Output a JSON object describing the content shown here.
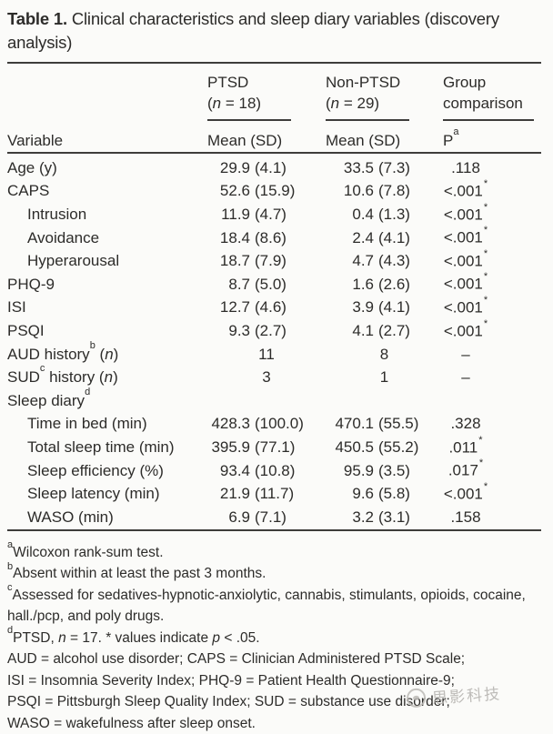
{
  "page": {
    "background_color": "#fbfbf9",
    "text_color": "#2d2c2a",
    "rule_color": "#3e3d3b",
    "watermark_color": "#b3b1ad"
  },
  "title": {
    "label": "Table 1.",
    "text": " Clinical characteristics and sleep diary variables (discovery analysis)"
  },
  "header": {
    "variable_label": "Variable",
    "ptsd": {
      "name": "PTSD",
      "n_pre": "(",
      "n_it": "n",
      "n_post": " = 18)",
      "stat": "Mean (SD)"
    },
    "nonptsd": {
      "name": "Non-PTSD",
      "n_pre": "(",
      "n_it": "n",
      "n_post": " = 29)",
      "stat": "Mean (SD)"
    },
    "group": {
      "line1": "Group",
      "line2": "comparison",
      "stat": "P",
      "stat_sup": "a"
    }
  },
  "table": {
    "rows": [
      {
        "label": "Age (y)",
        "label_sup": "",
        "tail_pre": "",
        "tail_it": "",
        "tail_post": "",
        "indent": false,
        "ptsd_mean": "29.9",
        "ptsd_sd": "(4.1)",
        "non_mean": "33.5",
        "non_sd": "(7.3)",
        "p": ".118",
        "p_star": ""
      },
      {
        "label": "CAPS",
        "label_sup": "",
        "tail_pre": "",
        "tail_it": "",
        "tail_post": "",
        "indent": false,
        "ptsd_mean": "52.6",
        "ptsd_sd": "(15.9)",
        "non_mean": "10.6",
        "non_sd": "(7.8)",
        "p": "<.001",
        "p_star": "*"
      },
      {
        "label": "Intrusion",
        "label_sup": "",
        "tail_pre": "",
        "tail_it": "",
        "tail_post": "",
        "indent": true,
        "ptsd_mean": "11.9",
        "ptsd_sd": "(4.7)",
        "non_mean": "0.4",
        "non_sd": "(1.3)",
        "p": "<.001",
        "p_star": "*"
      },
      {
        "label": "Avoidance",
        "label_sup": "",
        "tail_pre": "",
        "tail_it": "",
        "tail_post": "",
        "indent": true,
        "ptsd_mean": "18.4",
        "ptsd_sd": "(8.6)",
        "non_mean": "2.4",
        "non_sd": "(4.1)",
        "p": "<.001",
        "p_star": "*"
      },
      {
        "label": "Hyperarousal",
        "label_sup": "",
        "tail_pre": "",
        "tail_it": "",
        "tail_post": "",
        "indent": true,
        "ptsd_mean": "18.7",
        "ptsd_sd": "(7.9)",
        "non_mean": "4.7",
        "non_sd": "(4.3)",
        "p": "<.001",
        "p_star": "*"
      },
      {
        "label": "PHQ-9",
        "label_sup": "",
        "tail_pre": "",
        "tail_it": "",
        "tail_post": "",
        "indent": false,
        "ptsd_mean": "8.7",
        "ptsd_sd": "(5.0)",
        "non_mean": "1.6",
        "non_sd": "(2.6)",
        "p": "<.001",
        "p_star": "*"
      },
      {
        "label": "ISI",
        "label_sup": "",
        "tail_pre": "",
        "tail_it": "",
        "tail_post": "",
        "indent": false,
        "ptsd_mean": "12.7",
        "ptsd_sd": "(4.6)",
        "non_mean": "3.9",
        "non_sd": "(4.1)",
        "p": "<.001",
        "p_star": "*"
      },
      {
        "label": "PSQI",
        "label_sup": "",
        "tail_pre": "",
        "tail_it": "",
        "tail_post": "",
        "indent": false,
        "ptsd_mean": "9.3",
        "ptsd_sd": "(2.7)",
        "non_mean": "4.1",
        "non_sd": "(2.7)",
        "p": "<.001",
        "p_star": "*"
      },
      {
        "label": "AUD history",
        "label_sup": "b",
        "tail_pre": " (",
        "tail_it": "n",
        "tail_post": ")",
        "indent": false,
        "ptsd_mean": "11",
        "ptsd_sd": "",
        "non_mean": "8",
        "non_sd": "",
        "p": "–",
        "p_star": ""
      },
      {
        "label": "SUD",
        "label_sup": "c",
        "tail_pre": " history (",
        "tail_it": "n",
        "tail_post": ")",
        "indent": false,
        "ptsd_mean": "3",
        "ptsd_sd": "",
        "non_mean": "1",
        "non_sd": "",
        "p": "–",
        "p_star": ""
      },
      {
        "label": "Sleep diary",
        "label_sup": "d",
        "tail_pre": "",
        "tail_it": "",
        "tail_post": "",
        "indent": false,
        "ptsd_mean": "",
        "ptsd_sd": "",
        "non_mean": "",
        "non_sd": "",
        "p": "",
        "p_star": ""
      },
      {
        "label": "Time in bed (min)",
        "label_sup": "",
        "tail_pre": "",
        "tail_it": "",
        "tail_post": "",
        "indent": true,
        "ptsd_mean": "428.3",
        "ptsd_sd": "(100.0)",
        "non_mean": "470.1",
        "non_sd": "(55.5)",
        "p": ".328",
        "p_star": ""
      },
      {
        "label": "Total sleep time (min)",
        "label_sup": "",
        "tail_pre": "",
        "tail_it": "",
        "tail_post": "",
        "indent": true,
        "ptsd_mean": "395.9",
        "ptsd_sd": "(77.1)",
        "non_mean": "450.5",
        "non_sd": "(55.2)",
        "p": ".011",
        "p_star": "*"
      },
      {
        "label": "Sleep efficiency (%)",
        "label_sup": "",
        "tail_pre": "",
        "tail_it": "",
        "tail_post": "",
        "indent": true,
        "ptsd_mean": "93.4",
        "ptsd_sd": "(10.8)",
        "non_mean": "95.9",
        "non_sd": "(3.5)",
        "p": ".017",
        "p_star": "*"
      },
      {
        "label": "Sleep latency (min)",
        "label_sup": "",
        "tail_pre": "",
        "tail_it": "",
        "tail_post": "",
        "indent": true,
        "ptsd_mean": "21.9",
        "ptsd_sd": "(11.7)",
        "non_mean": "9.6",
        "non_sd": "(5.8)",
        "p": "<.001",
        "p_star": "*"
      },
      {
        "label": "WASO (min)",
        "label_sup": "",
        "tail_pre": "",
        "tail_it": "",
        "tail_post": "",
        "indent": true,
        "ptsd_mean": "6.9",
        "ptsd_sd": "(7.1)",
        "non_mean": "3.2",
        "non_sd": "(3.1)",
        "p": ".158",
        "p_star": ""
      }
    ]
  },
  "footnotes": [
    {
      "sup": "a",
      "parts": [
        {
          "t": "Wilcoxon rank-sum test."
        }
      ]
    },
    {
      "sup": "b",
      "parts": [
        {
          "t": "Absent within at least the past 3 months."
        }
      ]
    },
    {
      "sup": "c",
      "parts": [
        {
          "t": "Assessed for sedatives-hypnotic-anxiolytic, cannabis, stimulants, opioids, cocaine, hall./pcp, and poly drugs."
        }
      ]
    },
    {
      "sup": "d",
      "parts": [
        {
          "t": "PTSD, "
        },
        {
          "t": "n",
          "it": true
        },
        {
          "t": " = 17. * values indicate "
        },
        {
          "t": "p",
          "it": true
        },
        {
          "t": " < .05."
        }
      ]
    },
    {
      "sup": "",
      "parts": [
        {
          "t": "AUD = alcohol use disorder; CAPS = Clinician Administered PTSD Scale;"
        }
      ]
    },
    {
      "sup": "",
      "parts": [
        {
          "t": "ISI = Insomnia Severity Index; PHQ-9 = Patient Health Questionnaire-9;"
        }
      ]
    },
    {
      "sup": "",
      "parts": [
        {
          "t": "PSQI = Pittsburgh Sleep Quality Index; SUD = substance use disorder;"
        }
      ]
    },
    {
      "sup": "",
      "parts": [
        {
          "t": "WASO = wakefulness after sleep onset."
        }
      ]
    }
  ],
  "watermark": {
    "icon": "brand-logo-icon",
    "text": "思影科技"
  }
}
